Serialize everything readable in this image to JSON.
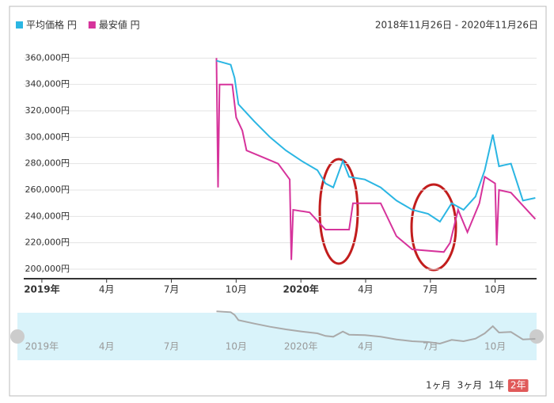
{
  "chart_data": {
    "type": "line",
    "date_range": "2018年11月26日 - 2020年11月26日",
    "range_buttons": [
      "1ヶ月",
      "3ヶ月",
      "1年",
      "2年"
    ],
    "xlim": [
      2018.93,
      2020.91
    ],
    "xticks": [
      {
        "value": 2019,
        "label": "2019年"
      },
      {
        "value": 2019.25,
        "label": "4月"
      },
      {
        "value": 2019.5,
        "label": "7月"
      },
      {
        "value": 2019.75,
        "label": "10月"
      },
      {
        "value": 2020,
        "label": "2020年"
      },
      {
        "value": 2020.25,
        "label": "4月"
      },
      {
        "value": 2020.5,
        "label": "7月"
      },
      {
        "value": 2020.75,
        "label": "10月"
      }
    ],
    "ylim": [
      194000,
      374000
    ],
    "yticks": [
      {
        "value": 200000,
        "label": "200,000円"
      },
      {
        "value": 220000,
        "label": "220,000円"
      },
      {
        "value": 240000,
        "label": "240,000円"
      },
      {
        "value": 260000,
        "label": "260,000円"
      },
      {
        "value": 280000,
        "label": "280,000円"
      },
      {
        "value": 300000,
        "label": "300,000円"
      },
      {
        "value": 320000,
        "label": "320,000円"
      },
      {
        "value": 340000,
        "label": "340,000円"
      },
      {
        "value": 360000,
        "label": "360,000円"
      }
    ],
    "grid": true,
    "series": [
      {
        "name": "平均価格 円",
        "color": "#2bb6e3",
        "x": [
          2019.674,
          2019.729,
          2019.744,
          2019.759,
          2019.82,
          2019.881,
          2019.942,
          2020.003,
          2020.064,
          2020.095,
          2020.125,
          2020.162,
          2020.186,
          2020.247,
          2020.308,
          2020.369,
          2020.43,
          2020.491,
          2020.537,
          2020.582,
          2020.628,
          2020.674,
          2020.71,
          2020.741,
          2020.765,
          2020.811,
          2020.857,
          2020.905
        ],
        "values": [
          358000,
          355000,
          345000,
          325000,
          312000,
          300000,
          290000,
          282000,
          275000,
          265000,
          262000,
          282000,
          270000,
          268000,
          262000,
          252000,
          245000,
          242000,
          236000,
          250000,
          245000,
          255000,
          275000,
          302000,
          278000,
          280000,
          252000,
          254000
        ]
      },
      {
        "name": "最安値 円",
        "color": "#d6339b",
        "x": [
          2019.674,
          2019.68,
          2019.686,
          2019.735,
          2019.75,
          2019.774,
          2019.79,
          2019.851,
          2019.912,
          2019.957,
          2019.963,
          2019.97,
          2020.034,
          2020.095,
          2020.186,
          2020.201,
          2020.308,
          2020.369,
          2020.43,
          2020.552,
          2020.576,
          2020.607,
          2020.643,
          2020.689,
          2020.71,
          2020.75,
          2020.756,
          2020.765,
          2020.811,
          2020.905
        ],
        "values": [
          360000,
          262000,
          340000,
          340000,
          315000,
          305000,
          290000,
          285000,
          280000,
          268000,
          207000,
          245000,
          243000,
          230000,
          230000,
          250000,
          250000,
          225000,
          215000,
          213000,
          220000,
          245000,
          228000,
          250000,
          270000,
          265000,
          218000,
          260000,
          258000,
          238000
        ]
      }
    ]
  }
}
